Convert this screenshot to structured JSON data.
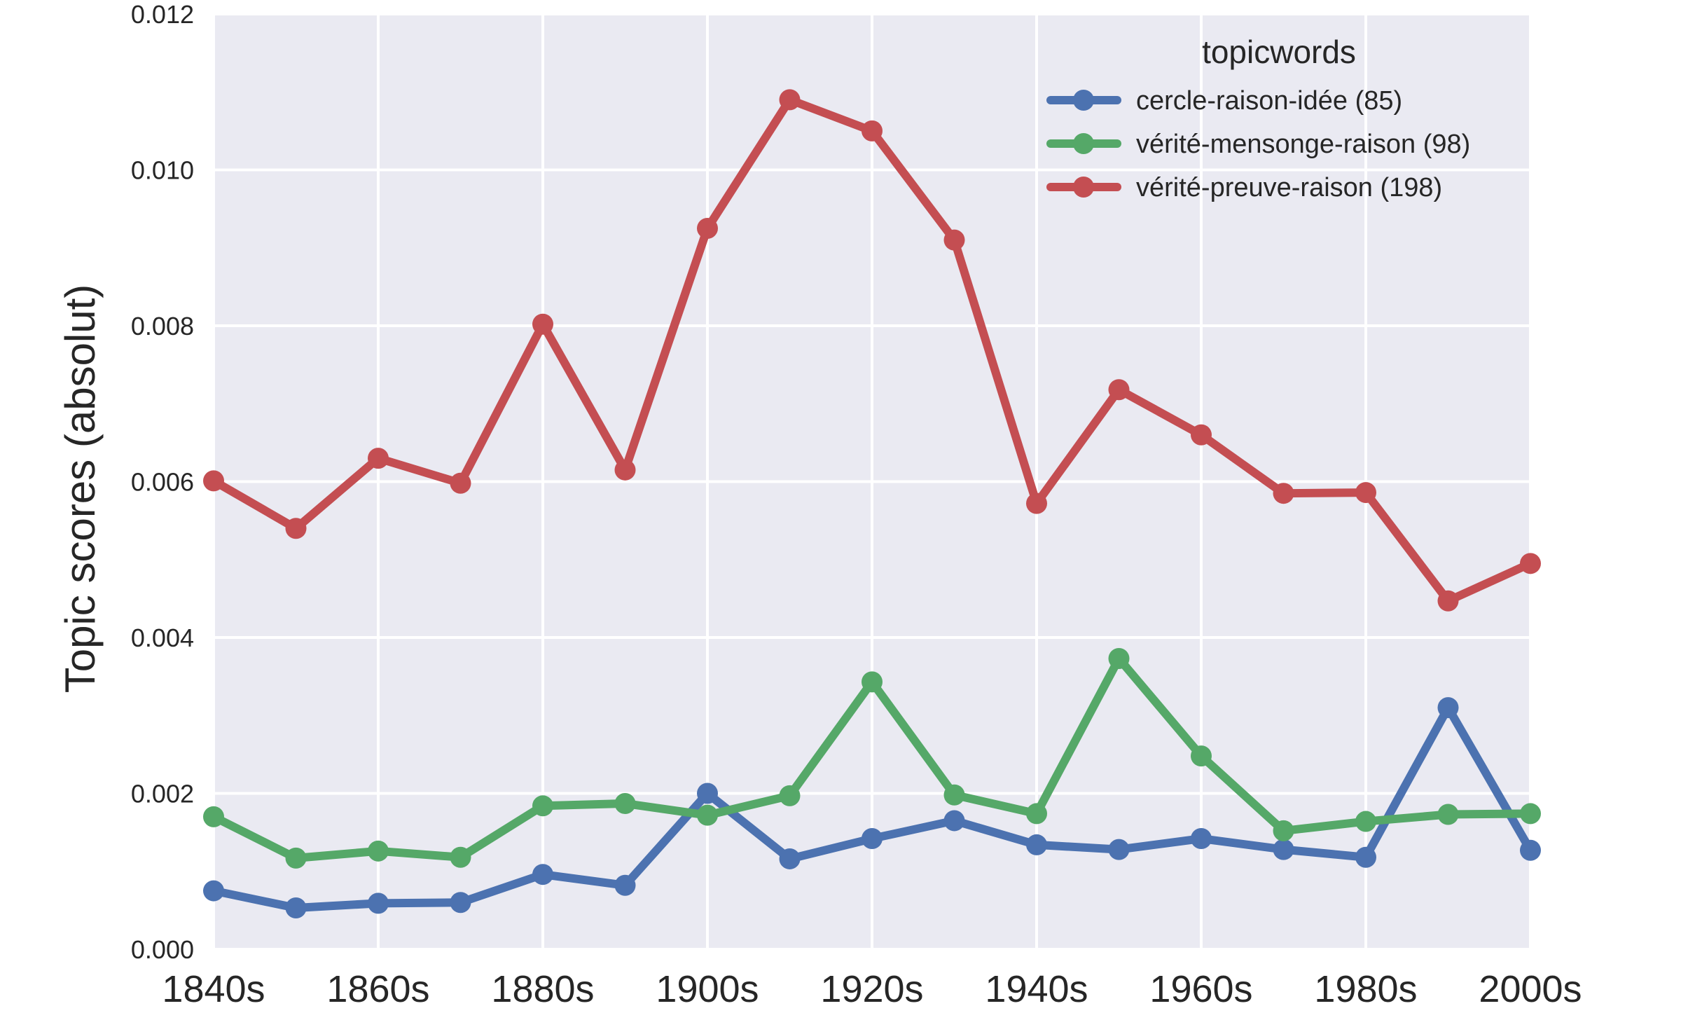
{
  "chart_data": {
    "type": "line",
    "title": "",
    "xlabel": "",
    "ylabel": "Topic scores (absolut)",
    "x": [
      "1840s",
      "1850s",
      "1860s",
      "1870s",
      "1880s",
      "1890s",
      "1900s",
      "1910s",
      "1920s",
      "1930s",
      "1940s",
      "1950s",
      "1960s",
      "1970s",
      "1980s",
      "1990s",
      "2000s"
    ],
    "x_tick_labels": [
      "1840s",
      "1860s",
      "1880s",
      "1900s",
      "1920s",
      "1940s",
      "1960s",
      "1980s",
      "2000s"
    ],
    "y_tick_labels": [
      "0.000",
      "0.002",
      "0.004",
      "0.006",
      "0.008",
      "0.010",
      "0.012"
    ],
    "ylim": [
      0,
      0.012
    ],
    "grid": true,
    "legend": {
      "title": "topicwords",
      "placement": "top-right"
    },
    "series": [
      {
        "name": "cercle-raison-idée (85)",
        "color": "#4c72b0",
        "values": [
          0.00075,
          0.00053,
          0.00059,
          0.0006,
          0.00096,
          0.00082,
          0.002,
          0.00116,
          0.00142,
          0.00165,
          0.00134,
          0.00128,
          0.00142,
          0.00128,
          0.00118,
          0.0031,
          0.00127
        ]
      },
      {
        "name": "vérité-mensonge-raison (98)",
        "color": "#55a868",
        "values": [
          0.0017,
          0.00117,
          0.00126,
          0.00118,
          0.00184,
          0.00187,
          0.00172,
          0.00197,
          0.00343,
          0.00198,
          0.00174,
          0.00373,
          0.00248,
          0.00152,
          0.00164,
          0.00173,
          0.00174
        ]
      },
      {
        "name": "vérité-preuve-raison (198)",
        "color": "#c44e52",
        "values": [
          0.00601,
          0.0054,
          0.0063,
          0.00598,
          0.00802,
          0.00615,
          0.00925,
          0.0109,
          0.0105,
          0.0091,
          0.00572,
          0.00718,
          0.0066,
          0.00585,
          0.00586,
          0.00447,
          0.00495
        ]
      }
    ]
  }
}
